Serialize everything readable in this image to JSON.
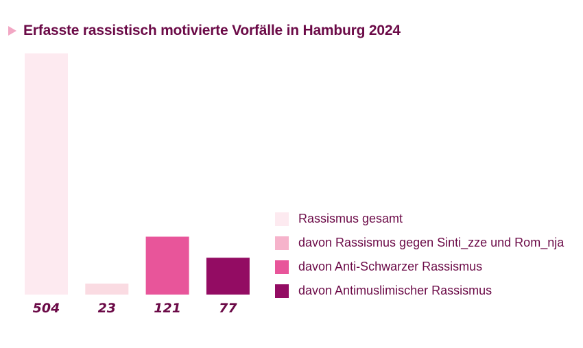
{
  "chart_data": {
    "type": "bar",
    "title": "Erfasste rassistisch motivierte Vorfälle in Hamburg 2024",
    "categories": [
      "Rassismus gesamt",
      "davon Rassismus gegen Sinti_zze und Rom_nja",
      "davon Anti-Schwarzer Rassismus",
      "davon Antimuslimischer Rassismus"
    ],
    "values": [
      504,
      23,
      121,
      77
    ],
    "value_labels": [
      "504",
      "23",
      "121",
      "77"
    ],
    "bar_colors": [
      "#fdeaf0",
      "#fadbe2",
      "#e8559a",
      "#930c63"
    ],
    "legend_colors": [
      "#fdeaf0",
      "#f6b3cb",
      "#e8559a",
      "#930c63"
    ],
    "ylim": [
      0,
      504
    ],
    "grid": false,
    "legend_position": "right"
  }
}
